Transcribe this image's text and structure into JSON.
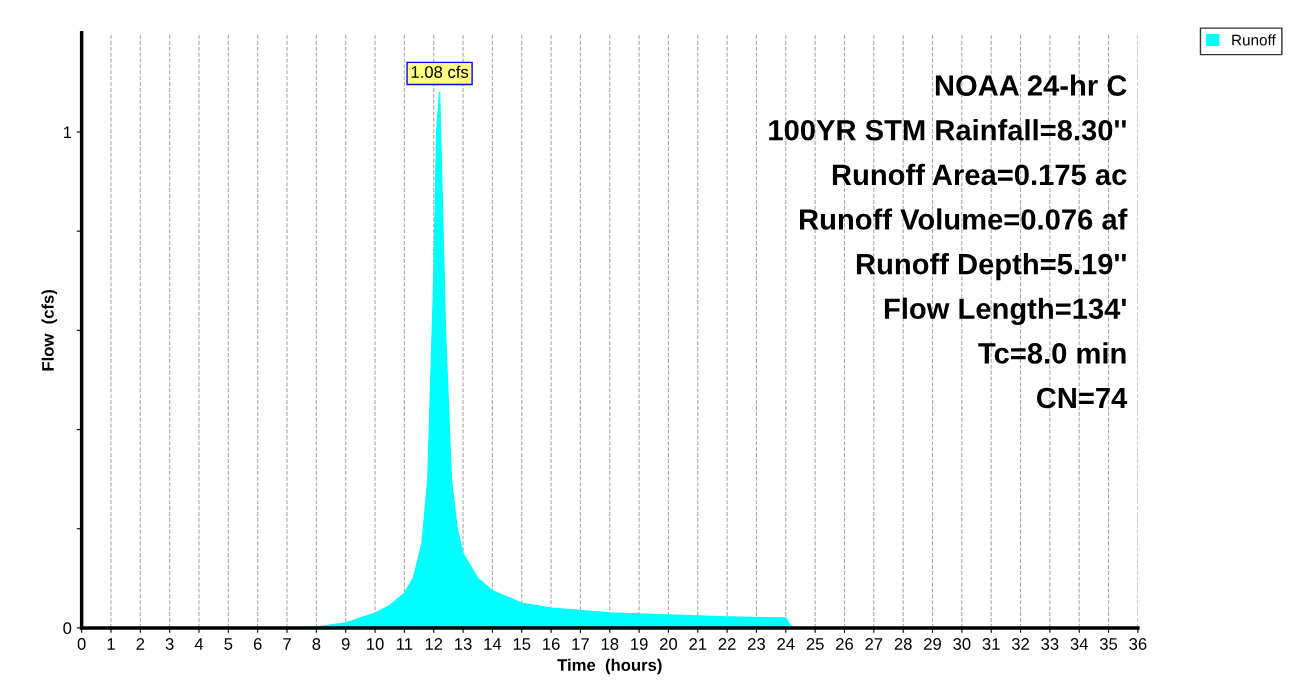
{
  "chart_data": {
    "type": "area",
    "xlabel": "Time  (hours)",
    "ylabel": "Flow  (cfs)",
    "x": [
      0,
      7,
      8,
      9,
      10,
      10.5,
      11,
      11.3,
      11.6,
      11.8,
      12.0,
      12.1,
      12.2,
      12.4,
      12.6,
      12.8,
      13.0,
      13.5,
      14.0,
      15.0,
      16.0,
      17.0,
      18.0,
      20.0,
      22.0,
      24.0,
      24.2,
      25,
      36
    ],
    "series": [
      {
        "name": "Runoff",
        "color": "#00ffff",
        "values": [
          0,
          0,
          0.002,
          0.01,
          0.03,
          0.045,
          0.07,
          0.1,
          0.17,
          0.3,
          0.7,
          1.0,
          1.08,
          0.6,
          0.3,
          0.2,
          0.15,
          0.1,
          0.075,
          0.05,
          0.04,
          0.035,
          0.03,
          0.026,
          0.022,
          0.02,
          0,
          0,
          0
        ]
      }
    ],
    "xlim": [
      0,
      36
    ],
    "ylim": [
      0,
      1.2
    ],
    "xticks": [
      0,
      1,
      2,
      3,
      4,
      5,
      6,
      7,
      8,
      9,
      10,
      11,
      12,
      13,
      14,
      15,
      16,
      17,
      18,
      19,
      20,
      21,
      22,
      23,
      24,
      25,
      26,
      27,
      28,
      29,
      30,
      31,
      32,
      33,
      34,
      35,
      36
    ],
    "yticks": [
      0,
      {
        "value": 0.2,
        "label": null
      },
      {
        "value": 0.4,
        "label": null
      },
      {
        "value": 0.6,
        "label": null
      },
      {
        "value": 0.8,
        "label": null
      },
      1
    ],
    "grid": "x",
    "legend": "top right",
    "annotations": [
      {
        "text": "1.08 cfs",
        "x": 12.2,
        "y": 1.08
      },
      "NOAA 24-hr C",
      "100YR STM Rainfall=8.30''",
      "Runoff Area=0.175 ac",
      "Runoff Volume=0.076 af",
      "Runoff Depth=5.19''",
      "Flow Length=134'",
      "Tc=8.0 min",
      "CN=74"
    ]
  }
}
